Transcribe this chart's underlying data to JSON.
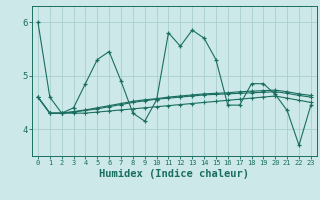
{
  "bg_color": "#cce8e8",
  "grid_color": "#aacece",
  "line_color": "#1a6e60",
  "xlabel": "Humidex (Indice chaleur)",
  "xlabel_fontsize": 7.5,
  "ylim": [
    3.5,
    6.3
  ],
  "xlim": [
    -0.5,
    23.5
  ],
  "yticks": [
    4,
    5,
    6
  ],
  "xticks": [
    0,
    1,
    2,
    3,
    4,
    5,
    6,
    7,
    8,
    9,
    10,
    11,
    12,
    13,
    14,
    15,
    16,
    17,
    18,
    19,
    20,
    21,
    22,
    23
  ],
  "series": [
    [
      6.0,
      4.6,
      4.3,
      4.4,
      4.85,
      5.3,
      5.45,
      4.9,
      4.3,
      4.15,
      4.55,
      5.8,
      5.55,
      5.85,
      5.7,
      5.3,
      4.45,
      4.45,
      4.85,
      4.85,
      4.65,
      4.35,
      3.7,
      4.45
    ],
    [
      4.6,
      4.3,
      4.3,
      4.32,
      4.35,
      4.38,
      4.42,
      4.46,
      4.5,
      4.53,
      4.56,
      4.58,
      4.6,
      4.62,
      4.64,
      4.65,
      4.66,
      4.67,
      4.68,
      4.69,
      4.7,
      4.67,
      4.63,
      4.6
    ],
    [
      4.6,
      4.3,
      4.3,
      4.33,
      4.36,
      4.4,
      4.44,
      4.48,
      4.52,
      4.55,
      4.57,
      4.6,
      4.62,
      4.64,
      4.66,
      4.67,
      4.68,
      4.7,
      4.71,
      4.72,
      4.73,
      4.7,
      4.66,
      4.63
    ],
    [
      4.6,
      4.3,
      4.3,
      4.3,
      4.3,
      4.32,
      4.34,
      4.36,
      4.38,
      4.4,
      4.42,
      4.44,
      4.46,
      4.48,
      4.5,
      4.52,
      4.54,
      4.56,
      4.58,
      4.6,
      4.62,
      4.58,
      4.54,
      4.5
    ]
  ]
}
